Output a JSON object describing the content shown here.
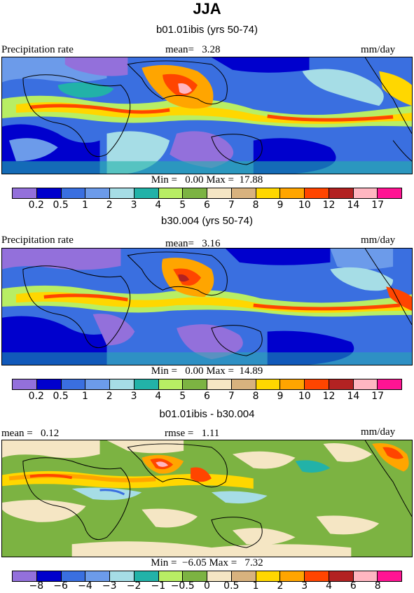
{
  "main_title": "JJA",
  "palette_abs": [
    "#9370DB",
    "#0000CD",
    "#3A6FE0",
    "#6C9BEA",
    "#A6DDE6",
    "#22B2A8",
    "#B8EE64",
    "#7CB342",
    "#F5E6C4",
    "#D8B27E",
    "#FFD700",
    "#FFA500",
    "#FF4500",
    "#B22222",
    "#FFB6C1",
    "#FF1493"
  ],
  "palette_diff": [
    "#9370DB",
    "#0000CD",
    "#3A6FE0",
    "#6C9BEA",
    "#A6DDE6",
    "#22B2A8",
    "#B8EE64",
    "#7CB342",
    "#F5E6C4",
    "#D8B27E",
    "#FFD700",
    "#FFA500",
    "#FF4500",
    "#B22222",
    "#FFB6C1",
    "#FF1493"
  ],
  "panels": [
    {
      "subtitle": "b01.01ibis (yrs 50-74)",
      "left_label": "Precipitation rate",
      "center_label": "mean=   3.28",
      "right_label": "mm/day",
      "stats": "Min =   0.00 Max =  17.88",
      "ticks": [
        "0.2",
        "0.5",
        "1",
        "2",
        "3",
        "4",
        "5",
        "6",
        "7",
        "8",
        "9",
        "10",
        "12",
        "14",
        "17"
      ]
    },
    {
      "subtitle": "b30.004 (yrs 50-74)",
      "left_label": "Precipitation rate",
      "center_label": "mean=   3.16",
      "right_label": "mm/day",
      "stats": "Min =   0.00 Max =  14.89",
      "ticks": [
        "0.2",
        "0.5",
        "1",
        "2",
        "3",
        "4",
        "5",
        "6",
        "7",
        "8",
        "9",
        "10",
        "12",
        "14",
        "17"
      ]
    },
    {
      "subtitle": "b01.01ibis - b30.004",
      "left_label": "mean =   0.12",
      "center_label": "rmse =   1.11",
      "right_label": "mm/day",
      "stats": "Min =  −6.05 Max =   7.32",
      "ticks": [
        "−8",
        "−6",
        "−4",
        "−3",
        "−2",
        "−1",
        "−0.5",
        "0",
        "0.5",
        "1",
        "2",
        "3",
        "4",
        "6",
        "8"
      ]
    }
  ]
}
